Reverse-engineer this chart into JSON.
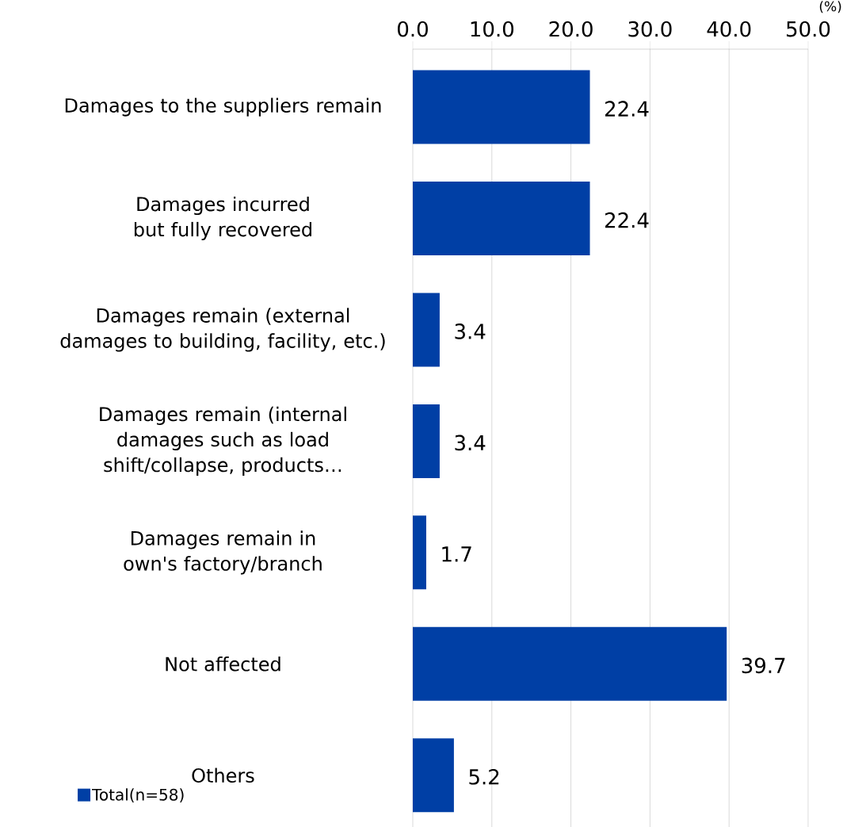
{
  "chart_data": {
    "type": "bar",
    "orientation": "horizontal",
    "xlabel": "(%)",
    "categories": [
      "Damages to the suppliers remain",
      "Damages incurred but fully recovered",
      "Damages remain (external damages to building, facility, etc.)",
      "Damages remain (internal damages such as load shift/collapse, products…",
      "Damages remain in own's factory/branch",
      "Not affected",
      "Others"
    ],
    "series": [
      {
        "name": "Total(n=58)",
        "color": "#003fa5",
        "values": [
          22.4,
          22.4,
          3.4,
          3.4,
          1.7,
          39.7,
          5.2
        ]
      }
    ],
    "xlim": [
      0,
      50
    ],
    "xticks": [
      {
        "value": 0,
        "label": "0.0"
      },
      {
        "value": 10,
        "label": "10.0"
      },
      {
        "value": 20,
        "label": "20.0"
      },
      {
        "value": 30,
        "label": "30.0"
      },
      {
        "value": 40,
        "label": "40.0"
      },
      {
        "value": 50,
        "label": "50.0"
      }
    ],
    "grid": "x",
    "legend": "bottom left",
    "data_labels": true
  }
}
